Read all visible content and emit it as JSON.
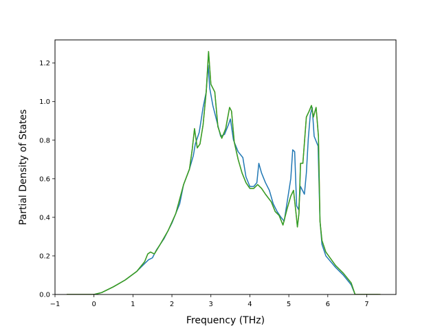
{
  "chart_data": {
    "type": "line",
    "title": "",
    "xlabel": "Frequency (THz)",
    "ylabel": "Partial Density of States",
    "xlim": [
      -1.0,
      7.75
    ],
    "ylim": [
      0.0,
      1.32
    ],
    "xticks": [
      -1,
      0,
      1,
      2,
      3,
      4,
      5,
      6,
      7
    ],
    "yticks": [
      0.0,
      0.2,
      0.4,
      0.6,
      0.8,
      1.0,
      1.2
    ],
    "ytick_labels": [
      "0.0",
      "0.2",
      "0.4",
      "0.6",
      "0.8",
      "1.0",
      "1.2"
    ],
    "grid": false,
    "legend": "none",
    "series": [
      {
        "color": "#1f77b4",
        "points": [
          [
            -0.7,
            0.0
          ],
          [
            0.0,
            0.0
          ],
          [
            0.2,
            0.01
          ],
          [
            0.5,
            0.04
          ],
          [
            0.8,
            0.075
          ],
          [
            1.1,
            0.12
          ],
          [
            1.3,
            0.16
          ],
          [
            1.4,
            0.18
          ],
          [
            1.5,
            0.19
          ],
          [
            1.6,
            0.23
          ],
          [
            1.8,
            0.29
          ],
          [
            2.0,
            0.37
          ],
          [
            2.2,
            0.47
          ],
          [
            2.3,
            0.57
          ],
          [
            2.45,
            0.65
          ],
          [
            2.55,
            0.72
          ],
          [
            2.6,
            0.78
          ],
          [
            2.7,
            0.84
          ],
          [
            2.8,
            0.97
          ],
          [
            2.88,
            1.05
          ],
          [
            2.93,
            1.19
          ],
          [
            2.97,
            1.07
          ],
          [
            3.05,
            0.98
          ],
          [
            3.15,
            0.9
          ],
          [
            3.25,
            0.82
          ],
          [
            3.35,
            0.83
          ],
          [
            3.45,
            0.88
          ],
          [
            3.5,
            0.91
          ],
          [
            3.58,
            0.8
          ],
          [
            3.7,
            0.74
          ],
          [
            3.82,
            0.71
          ],
          [
            3.9,
            0.61
          ],
          [
            4.0,
            0.56
          ],
          [
            4.1,
            0.56
          ],
          [
            4.18,
            0.58
          ],
          [
            4.23,
            0.68
          ],
          [
            4.3,
            0.63
          ],
          [
            4.4,
            0.58
          ],
          [
            4.5,
            0.54
          ],
          [
            4.6,
            0.47
          ],
          [
            4.7,
            0.43
          ],
          [
            4.8,
            0.4
          ],
          [
            4.88,
            0.38
          ],
          [
            4.95,
            0.47
          ],
          [
            5.05,
            0.6
          ],
          [
            5.1,
            0.75
          ],
          [
            5.15,
            0.74
          ],
          [
            5.2,
            0.46
          ],
          [
            5.25,
            0.44
          ],
          [
            5.3,
            0.56
          ],
          [
            5.4,
            0.52
          ],
          [
            5.45,
            0.63
          ],
          [
            5.5,
            0.81
          ],
          [
            5.55,
            0.93
          ],
          [
            5.6,
            0.97
          ],
          [
            5.65,
            0.82
          ],
          [
            5.75,
            0.77
          ],
          [
            5.8,
            0.38
          ],
          [
            5.85,
            0.26
          ],
          [
            5.95,
            0.2
          ],
          [
            6.2,
            0.14
          ],
          [
            6.4,
            0.1
          ],
          [
            6.6,
            0.05
          ],
          [
            6.7,
            0.0
          ],
          [
            7.3,
            0.0
          ]
        ]
      },
      {
        "color": "#ff7f0e",
        "points": [
          [
            -0.7,
            0.0
          ],
          [
            0.0,
            0.0
          ],
          [
            0.2,
            0.01
          ],
          [
            0.5,
            0.04
          ],
          [
            0.8,
            0.075
          ],
          [
            1.1,
            0.12
          ],
          [
            1.3,
            0.17
          ],
          [
            1.38,
            0.21
          ],
          [
            1.45,
            0.22
          ],
          [
            1.55,
            0.21
          ],
          [
            1.7,
            0.26
          ],
          [
            1.9,
            0.33
          ],
          [
            2.1,
            0.42
          ],
          [
            2.3,
            0.57
          ],
          [
            2.45,
            0.65
          ],
          [
            2.52,
            0.75
          ],
          [
            2.58,
            0.86
          ],
          [
            2.65,
            0.76
          ],
          [
            2.72,
            0.78
          ],
          [
            2.8,
            0.88
          ],
          [
            2.88,
            1.05
          ],
          [
            2.94,
            1.26
          ],
          [
            3.0,
            1.09
          ],
          [
            3.1,
            1.05
          ],
          [
            3.18,
            0.87
          ],
          [
            3.28,
            0.81
          ],
          [
            3.38,
            0.86
          ],
          [
            3.48,
            0.97
          ],
          [
            3.53,
            0.95
          ],
          [
            3.6,
            0.79
          ],
          [
            3.7,
            0.7
          ],
          [
            3.8,
            0.63
          ],
          [
            3.9,
            0.58
          ],
          [
            4.0,
            0.55
          ],
          [
            4.1,
            0.55
          ],
          [
            4.2,
            0.57
          ],
          [
            4.3,
            0.55
          ],
          [
            4.4,
            0.52
          ],
          [
            4.55,
            0.48
          ],
          [
            4.65,
            0.43
          ],
          [
            4.75,
            0.41
          ],
          [
            4.85,
            0.36
          ],
          [
            4.95,
            0.44
          ],
          [
            5.05,
            0.51
          ],
          [
            5.12,
            0.54
          ],
          [
            5.18,
            0.43
          ],
          [
            5.22,
            0.35
          ],
          [
            5.26,
            0.42
          ],
          [
            5.3,
            0.68
          ],
          [
            5.36,
            0.68
          ],
          [
            5.45,
            0.92
          ],
          [
            5.52,
            0.95
          ],
          [
            5.58,
            0.98
          ],
          [
            5.63,
            0.92
          ],
          [
            5.7,
            0.97
          ],
          [
            5.76,
            0.82
          ],
          [
            5.8,
            0.38
          ],
          [
            5.85,
            0.28
          ],
          [
            5.95,
            0.22
          ],
          [
            6.2,
            0.15
          ],
          [
            6.4,
            0.11
          ],
          [
            6.6,
            0.06
          ],
          [
            6.7,
            0.0
          ],
          [
            7.35,
            0.0
          ]
        ]
      },
      {
        "color": "#2ca02c",
        "points": [
          [
            -0.7,
            0.0
          ],
          [
            0.0,
            0.0
          ],
          [
            0.2,
            0.01
          ],
          [
            0.5,
            0.04
          ],
          [
            0.8,
            0.075
          ],
          [
            1.1,
            0.12
          ],
          [
            1.3,
            0.17
          ],
          [
            1.38,
            0.21
          ],
          [
            1.45,
            0.22
          ],
          [
            1.55,
            0.21
          ],
          [
            1.7,
            0.26
          ],
          [
            1.9,
            0.33
          ],
          [
            2.1,
            0.42
          ],
          [
            2.3,
            0.57
          ],
          [
            2.45,
            0.65
          ],
          [
            2.52,
            0.75
          ],
          [
            2.58,
            0.86
          ],
          [
            2.65,
            0.76
          ],
          [
            2.72,
            0.78
          ],
          [
            2.8,
            0.88
          ],
          [
            2.88,
            1.05
          ],
          [
            2.94,
            1.26
          ],
          [
            3.0,
            1.09
          ],
          [
            3.1,
            1.05
          ],
          [
            3.18,
            0.87
          ],
          [
            3.28,
            0.81
          ],
          [
            3.38,
            0.86
          ],
          [
            3.48,
            0.97
          ],
          [
            3.53,
            0.95
          ],
          [
            3.6,
            0.79
          ],
          [
            3.7,
            0.7
          ],
          [
            3.8,
            0.63
          ],
          [
            3.9,
            0.58
          ],
          [
            4.0,
            0.55
          ],
          [
            4.1,
            0.55
          ],
          [
            4.2,
            0.57
          ],
          [
            4.3,
            0.55
          ],
          [
            4.4,
            0.52
          ],
          [
            4.55,
            0.48
          ],
          [
            4.65,
            0.43
          ],
          [
            4.75,
            0.41
          ],
          [
            4.85,
            0.36
          ],
          [
            4.95,
            0.44
          ],
          [
            5.05,
            0.51
          ],
          [
            5.12,
            0.54
          ],
          [
            5.18,
            0.43
          ],
          [
            5.22,
            0.35
          ],
          [
            5.26,
            0.42
          ],
          [
            5.3,
            0.68
          ],
          [
            5.36,
            0.68
          ],
          [
            5.45,
            0.92
          ],
          [
            5.52,
            0.95
          ],
          [
            5.58,
            0.98
          ],
          [
            5.63,
            0.92
          ],
          [
            5.7,
            0.97
          ],
          [
            5.76,
            0.82
          ],
          [
            5.8,
            0.38
          ],
          [
            5.85,
            0.28
          ],
          [
            5.95,
            0.22
          ],
          [
            6.2,
            0.15
          ],
          [
            6.4,
            0.11
          ],
          [
            6.6,
            0.06
          ],
          [
            6.7,
            0.0
          ],
          [
            7.35,
            0.0
          ]
        ]
      }
    ]
  }
}
